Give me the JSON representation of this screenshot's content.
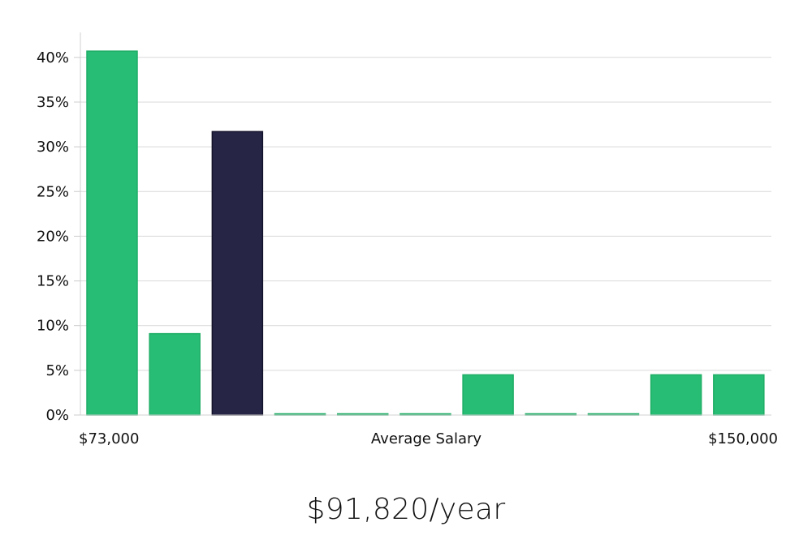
{
  "chart_data": {
    "type": "bar",
    "xlabel": "Average Salary",
    "x_range_labels": {
      "min": "$73,000",
      "max": "$150,000"
    },
    "y_unit": "%",
    "ylim": [
      0,
      42
    ],
    "yticks": [
      0,
      5,
      10,
      15,
      20,
      25,
      30,
      35,
      40
    ],
    "grid": true,
    "values": [
      40.7,
      9.1,
      31.7,
      0,
      0,
      0,
      4.5,
      0,
      0,
      4.5,
      4.5
    ],
    "highlight_index": 2,
    "colors": {
      "bar": "#27bd74",
      "highlight": "#272546",
      "grid": "#d9d9d9",
      "axis": "#cccccc"
    }
  },
  "salary_display": "$91,820/year"
}
